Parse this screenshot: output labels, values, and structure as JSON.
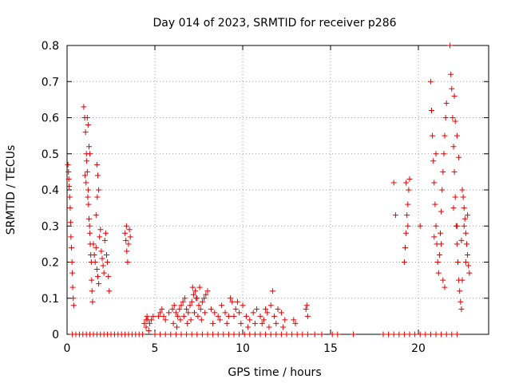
{
  "chart_data": {
    "type": "scatter",
    "title": "Day 014 of 2023, SRMTID for receiver p286",
    "xlabel": "GPS time / hours",
    "ylabel": "SRMTID / TECUs",
    "xlim": [
      0,
      24
    ],
    "ylim": [
      0,
      0.8
    ],
    "xticks": [
      0,
      5,
      10,
      15,
      20
    ],
    "yticks": [
      0,
      0.1,
      0.2,
      0.3,
      0.4,
      0.5,
      0.6,
      0.7,
      0.8
    ],
    "grid": true,
    "marker": "+",
    "marker_color": "#e00000",
    "series": [
      {
        "name": "SRMTID",
        "points": [
          [
            0.05,
            0.47
          ],
          [
            0.08,
            0.45
          ],
          [
            0.1,
            0.43
          ],
          [
            0.12,
            0.41
          ],
          [
            0.15,
            0.38
          ],
          [
            0.18,
            0.35
          ],
          [
            0.2,
            0.31
          ],
          [
            0.22,
            0.27
          ],
          [
            0.25,
            0.24
          ],
          [
            0.28,
            0.2
          ],
          [
            0.3,
            0.17
          ],
          [
            0.32,
            0.13
          ],
          [
            0.35,
            0.1
          ],
          [
            0.38,
            0.08
          ],
          [
            0.95,
            0.63
          ],
          [
            1.0,
            0.6
          ],
          [
            1.05,
            0.56
          ],
          [
            1.1,
            0.5
          ],
          [
            1.12,
            0.48
          ],
          [
            1.15,
            0.45
          ],
          [
            1.2,
            0.4
          ],
          [
            1.22,
            0.36
          ],
          [
            1.25,
            0.32
          ],
          [
            1.28,
            0.3
          ],
          [
            1.3,
            0.28
          ],
          [
            1.32,
            0.25
          ],
          [
            1.35,
            0.22
          ],
          [
            1.38,
            0.2
          ],
          [
            1.4,
            0.15
          ],
          [
            1.42,
            0.12
          ],
          [
            1.45,
            0.09
          ],
          [
            1.15,
            0.6
          ],
          [
            1.2,
            0.58
          ],
          [
            1.25,
            0.52
          ],
          [
            1.3,
            0.5
          ],
          [
            1.02,
            0.44
          ],
          [
            1.08,
            0.42
          ],
          [
            1.18,
            0.38
          ],
          [
            1.5,
            0.25
          ],
          [
            1.55,
            0.22
          ],
          [
            1.6,
            0.2
          ],
          [
            1.65,
            0.24
          ],
          [
            1.7,
            0.18
          ],
          [
            1.75,
            0.16
          ],
          [
            1.8,
            0.14
          ],
          [
            1.85,
            0.27
          ],
          [
            1.9,
            0.29
          ],
          [
            1.95,
            0.23
          ],
          [
            2.0,
            0.21
          ],
          [
            2.05,
            0.19
          ],
          [
            2.1,
            0.17
          ],
          [
            2.15,
            0.26
          ],
          [
            2.2,
            0.28
          ],
          [
            2.25,
            0.22
          ],
          [
            2.3,
            0.2
          ],
          [
            2.35,
            0.16
          ],
          [
            2.4,
            0.12
          ],
          [
            1.7,
            0.47
          ],
          [
            1.75,
            0.44
          ],
          [
            1.8,
            0.4
          ],
          [
            1.72,
            0.38
          ],
          [
            1.65,
            0.33
          ],
          [
            3.3,
            0.28
          ],
          [
            3.35,
            0.26
          ],
          [
            3.4,
            0.23
          ],
          [
            3.45,
            0.2
          ],
          [
            3.5,
            0.25
          ],
          [
            3.55,
            0.29
          ],
          [
            3.6,
            0.27
          ],
          [
            3.38,
            0.3
          ],
          [
            4.4,
            0.03
          ],
          [
            4.5,
            0.04
          ],
          [
            4.55,
            0.05
          ],
          [
            4.6,
            0.04
          ],
          [
            4.7,
            0.03
          ],
          [
            4.8,
            0.04
          ],
          [
            4.9,
            0.05
          ],
          [
            4.5,
            0.02
          ],
          [
            4.65,
            0.01
          ],
          [
            5.2,
            0.05
          ],
          [
            5.3,
            0.06
          ],
          [
            5.4,
            0.07
          ],
          [
            5.5,
            0.05
          ],
          [
            5.6,
            0.04
          ],
          [
            5.8,
            0.06
          ],
          [
            6.0,
            0.07
          ],
          [
            6.1,
            0.08
          ],
          [
            6.2,
            0.06
          ],
          [
            6.3,
            0.05
          ],
          [
            6.4,
            0.07
          ],
          [
            6.5,
            0.08
          ],
          [
            6.6,
            0.09
          ],
          [
            6.7,
            0.1
          ],
          [
            6.8,
            0.07
          ],
          [
            6.9,
            0.06
          ],
          [
            7.0,
            0.08
          ],
          [
            7.1,
            0.09
          ],
          [
            7.2,
            0.11
          ],
          [
            7.3,
            0.12
          ],
          [
            7.4,
            0.1
          ],
          [
            7.5,
            0.08
          ],
          [
            7.6,
            0.07
          ],
          [
            7.7,
            0.09
          ],
          [
            7.8,
            0.1
          ],
          [
            7.9,
            0.11
          ],
          [
            8.0,
            0.12
          ],
          [
            6.05,
            0.03
          ],
          [
            6.25,
            0.02
          ],
          [
            6.45,
            0.04
          ],
          [
            6.65,
            0.05
          ],
          [
            6.85,
            0.03
          ],
          [
            7.05,
            0.04
          ],
          [
            7.25,
            0.06
          ],
          [
            7.45,
            0.05
          ],
          [
            7.65,
            0.04
          ],
          [
            7.85,
            0.06
          ],
          [
            7.15,
            0.13
          ],
          [
            7.35,
            0.1
          ],
          [
            7.55,
            0.13
          ],
          [
            8.2,
            0.07
          ],
          [
            8.4,
            0.06
          ],
          [
            8.6,
            0.05
          ],
          [
            8.8,
            0.08
          ],
          [
            9.0,
            0.06
          ],
          [
            9.2,
            0.05
          ],
          [
            9.4,
            0.09
          ],
          [
            9.6,
            0.07
          ],
          [
            9.8,
            0.06
          ],
          [
            10.0,
            0.08
          ],
          [
            10.2,
            0.05
          ],
          [
            10.4,
            0.04
          ],
          [
            10.6,
            0.06
          ],
          [
            10.8,
            0.07
          ],
          [
            11.0,
            0.05
          ],
          [
            11.2,
            0.04
          ],
          [
            11.4,
            0.06
          ],
          [
            11.6,
            0.08
          ],
          [
            11.8,
            0.05
          ],
          [
            12.0,
            0.07
          ],
          [
            12.2,
            0.06
          ],
          [
            12.4,
            0.04
          ],
          [
            8.3,
            0.03
          ],
          [
            8.7,
            0.04
          ],
          [
            9.1,
            0.03
          ],
          [
            9.5,
            0.05
          ],
          [
            9.9,
            0.03
          ],
          [
            10.3,
            0.02
          ],
          [
            10.7,
            0.03
          ],
          [
            11.1,
            0.03
          ],
          [
            11.5,
            0.02
          ],
          [
            11.9,
            0.03
          ],
          [
            12.3,
            0.02
          ],
          [
            9.3,
            0.1
          ],
          [
            9.7,
            0.09
          ],
          [
            11.3,
            0.07
          ],
          [
            11.7,
            0.12
          ],
          [
            12.9,
            0.04
          ],
          [
            13.0,
            0.03
          ],
          [
            13.6,
            0.07
          ],
          [
            13.7,
            0.05
          ],
          [
            13.65,
            0.08
          ],
          [
            18.6,
            0.42
          ],
          [
            18.7,
            0.33
          ],
          [
            19.2,
            0.2
          ],
          [
            19.25,
            0.24
          ],
          [
            19.3,
            0.28
          ],
          [
            19.35,
            0.33
          ],
          [
            19.4,
            0.36
          ],
          [
            19.45,
            0.4
          ],
          [
            19.5,
            0.43
          ],
          [
            19.3,
            0.42
          ],
          [
            19.4,
            0.3
          ],
          [
            20.1,
            0.3
          ],
          [
            20.7,
            0.7
          ],
          [
            20.75,
            0.62
          ],
          [
            20.8,
            0.55
          ],
          [
            20.85,
            0.48
          ],
          [
            20.9,
            0.42
          ],
          [
            20.95,
            0.36
          ],
          [
            21.0,
            0.3
          ],
          [
            21.05,
            0.25
          ],
          [
            21.1,
            0.2
          ],
          [
            21.15,
            0.17
          ],
          [
            21.2,
            0.22
          ],
          [
            21.25,
            0.28
          ],
          [
            21.3,
            0.34
          ],
          [
            21.35,
            0.4
          ],
          [
            21.4,
            0.45
          ],
          [
            21.45,
            0.5
          ],
          [
            21.5,
            0.55
          ],
          [
            21.55,
            0.6
          ],
          [
            21.6,
            0.64
          ],
          [
            21.3,
            0.25
          ],
          [
            21.4,
            0.15
          ],
          [
            21.5,
            0.13
          ],
          [
            20.9,
            0.27
          ],
          [
            21.0,
            0.5
          ],
          [
            21.8,
            0.8
          ],
          [
            21.85,
            0.72
          ],
          [
            21.9,
            0.68
          ],
          [
            21.95,
            0.6
          ],
          [
            22.0,
            0.52
          ],
          [
            22.05,
            0.45
          ],
          [
            22.1,
            0.38
          ],
          [
            22.15,
            0.3
          ],
          [
            22.2,
            0.25
          ],
          [
            22.25,
            0.2
          ],
          [
            22.3,
            0.15
          ],
          [
            22.35,
            0.12
          ],
          [
            22.4,
            0.09
          ],
          [
            22.45,
            0.07
          ],
          [
            22.05,
            0.66
          ],
          [
            22.1,
            0.59
          ],
          [
            22.2,
            0.55
          ],
          [
            22.3,
            0.49
          ],
          [
            22.0,
            0.35
          ],
          [
            22.2,
            0.3
          ],
          [
            22.5,
            0.4
          ],
          [
            22.55,
            0.38
          ],
          [
            22.6,
            0.35
          ],
          [
            22.65,
            0.32
          ],
          [
            22.7,
            0.28
          ],
          [
            22.75,
            0.25
          ],
          [
            22.8,
            0.22
          ],
          [
            22.85,
            0.19
          ],
          [
            22.9,
            0.17
          ],
          [
            22.6,
            0.3
          ],
          [
            22.7,
            0.2
          ],
          [
            22.8,
            0.33
          ],
          [
            22.5,
            0.15
          ],
          [
            22.45,
            0.26
          ],
          [
            0.3,
            0.0
          ],
          [
            0.5,
            0.0
          ],
          [
            0.7,
            0.0
          ],
          [
            0.9,
            0.0
          ],
          [
            1.1,
            0.0
          ],
          [
            1.3,
            0.0
          ],
          [
            1.5,
            0.0
          ],
          [
            1.7,
            0.0
          ],
          [
            1.9,
            0.0
          ],
          [
            2.1,
            0.0
          ],
          [
            2.3,
            0.0
          ],
          [
            2.5,
            0.0
          ],
          [
            2.7,
            0.0
          ],
          [
            2.9,
            0.0
          ],
          [
            3.1,
            0.0
          ],
          [
            3.3,
            0.0
          ],
          [
            3.5,
            0.0
          ],
          [
            3.7,
            0.0
          ],
          [
            3.9,
            0.0
          ],
          [
            4.1,
            0.0
          ],
          [
            4.3,
            0.0
          ],
          [
            5.0,
            0.0
          ],
          [
            5.3,
            0.0
          ],
          [
            5.6,
            0.0
          ],
          [
            5.9,
            0.0
          ],
          [
            6.2,
            0.0
          ],
          [
            6.5,
            0.0
          ],
          [
            6.8,
            0.0
          ],
          [
            7.1,
            0.0
          ],
          [
            7.4,
            0.0
          ],
          [
            7.7,
            0.0
          ],
          [
            8.0,
            0.0
          ],
          [
            8.3,
            0.0
          ],
          [
            8.6,
            0.0
          ],
          [
            8.9,
            0.0
          ],
          [
            9.2,
            0.0
          ],
          [
            9.5,
            0.0
          ],
          [
            9.8,
            0.0
          ],
          [
            10.1,
            0.0
          ],
          [
            10.4,
            0.0
          ],
          [
            10.7,
            0.0
          ],
          [
            11.0,
            0.0
          ],
          [
            11.3,
            0.0
          ],
          [
            11.6,
            0.0
          ],
          [
            11.9,
            0.0
          ],
          [
            12.2,
            0.0
          ],
          [
            12.5,
            0.0
          ],
          [
            12.8,
            0.0
          ],
          [
            13.1,
            0.0
          ],
          [
            13.4,
            0.0
          ],
          [
            13.7,
            0.0
          ],
          [
            14.1,
            0.0
          ],
          [
            14.5,
            0.0
          ],
          [
            15.1,
            0.0
          ],
          [
            15.4,
            0.0
          ],
          [
            16.3,
            0.0
          ],
          [
            18.0,
            0.0
          ],
          [
            18.3,
            0.0
          ],
          [
            18.6,
            0.0
          ],
          [
            18.9,
            0.0
          ],
          [
            19.2,
            0.0
          ],
          [
            19.5,
            0.0
          ],
          [
            19.8,
            0.0
          ],
          [
            20.1,
            0.0
          ],
          [
            20.4,
            0.0
          ],
          [
            20.7,
            0.0
          ],
          [
            21.0,
            0.0
          ],
          [
            21.3,
            0.0
          ],
          [
            21.6,
            0.0
          ],
          [
            21.9,
            0.0
          ],
          [
            22.2,
            0.0
          ]
        ]
      }
    ]
  }
}
